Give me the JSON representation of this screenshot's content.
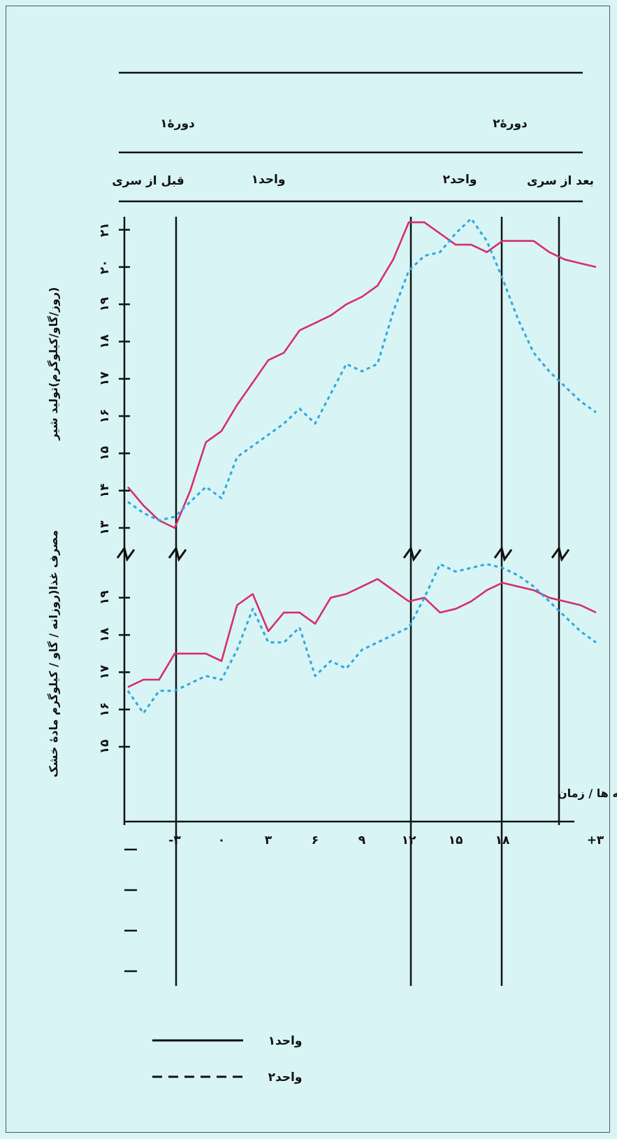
{
  "header": {
    "period1": "دورهٔ۱",
    "period2": "دورهٔ۲",
    "before": "قبل از سری",
    "unit1": "واحد۱",
    "unit2": "واحد۲",
    "after": "بعد از سری"
  },
  "colors": {
    "unit1": "#d62e6b",
    "unit2": "#29a9e0",
    "axis": "#111111",
    "background": "#d9f4f4"
  },
  "chart_data": [
    {
      "type": "line",
      "title": "",
      "ylabel": "(روز/گاو/کیلوگرم)تولید شیر",
      "ylim": [
        12.3,
        21.5
      ],
      "yticks": [
        13,
        14,
        15,
        16,
        17,
        18,
        19,
        20,
        21
      ],
      "ytick_labels": [
        "۱۳",
        "۱۴",
        "۱۵",
        "۱۶",
        "۱۷",
        "۱۸",
        "۱۹",
        "۲۰",
        "۲۱"
      ],
      "series": [
        {
          "name": "واحد۱",
          "style": "solid",
          "x": [
            -6,
            -5,
            -4,
            -3,
            -2,
            -1,
            0,
            1,
            2,
            3,
            4,
            5,
            6,
            7,
            8,
            9,
            10,
            11,
            12,
            13,
            14,
            15,
            16,
            17,
            18,
            19,
            20,
            21,
            22,
            23,
            24
          ],
          "values": [
            14.1,
            13.6,
            13.2,
            13.0,
            14.0,
            15.3,
            15.6,
            16.3,
            16.9,
            17.5,
            17.7,
            18.3,
            18.5,
            18.7,
            19.0,
            19.2,
            19.5,
            20.2,
            21.2,
            21.2,
            20.9,
            20.6,
            20.6,
            20.4,
            20.7,
            20.7,
            20.7,
            20.4,
            20.2,
            20.1,
            20.0
          ]
        },
        {
          "name": "واحد۲",
          "style": "dashed",
          "x": [
            -6,
            -5,
            -4,
            -3,
            -2,
            -1,
            0,
            1,
            2,
            3,
            4,
            5,
            6,
            7,
            8,
            9,
            10,
            11,
            12,
            13,
            14,
            15,
            16,
            17,
            18,
            19,
            20,
            21,
            22,
            23,
            24
          ],
          "values": [
            13.7,
            13.4,
            13.2,
            13.3,
            13.7,
            14.1,
            13.8,
            14.9,
            15.2,
            15.5,
            15.8,
            16.2,
            15.8,
            16.6,
            17.4,
            17.2,
            17.4,
            18.8,
            19.9,
            20.3,
            20.4,
            20.9,
            21.3,
            20.7,
            19.7,
            18.6,
            17.7,
            17.2,
            16.8,
            16.4,
            16.1
          ]
        }
      ]
    },
    {
      "type": "line",
      "title": "",
      "ylabel": "مصرف غذا(روزانه / گاو / کیلوگرم مادهٔ خشک",
      "xlabel": "هفته ها / زمان",
      "ylim": [
        14.3,
        20.6
      ],
      "yticks": [
        15,
        16,
        17,
        18,
        19
      ],
      "ytick_labels": [
        "۱۵",
        "۱۶",
        "۱۷",
        "۱۸",
        "۱۹"
      ],
      "xticks": [
        -3,
        0,
        3,
        6,
        9,
        12,
        15,
        18
      ],
      "xtick_labels": [
        "-۳",
        "۰",
        "۳",
        "۶",
        "۹",
        "۱۲",
        "۱۵",
        "۱۸"
      ],
      "x_end_label": "+۳",
      "series": [
        {
          "name": "واحد۱",
          "style": "solid",
          "x": [
            -6,
            -5,
            -4,
            -3,
            -2,
            -1,
            0,
            1,
            2,
            3,
            4,
            5,
            6,
            7,
            8,
            9,
            10,
            11,
            12,
            13,
            14,
            15,
            16,
            17,
            18,
            19,
            20,
            21,
            22,
            23,
            24
          ],
          "values": [
            16.6,
            16.8,
            16.8,
            17.5,
            17.5,
            17.5,
            17.3,
            18.8,
            19.1,
            18.1,
            18.6,
            18.6,
            18.3,
            19.0,
            19.1,
            19.3,
            19.5,
            19.2,
            18.9,
            19.0,
            18.6,
            18.7,
            18.9,
            19.2,
            19.4,
            19.3,
            19.2,
            19.0,
            18.9,
            18.8,
            18.6
          ]
        },
        {
          "name": "واحد۲",
          "style": "dashed",
          "x": [
            -6,
            -5,
            -4,
            -3,
            -2,
            -1,
            0,
            1,
            2,
            3,
            4,
            5,
            6,
            7,
            8,
            9,
            10,
            11,
            12,
            13,
            14,
            15,
            16,
            17,
            18,
            19,
            20,
            21,
            22,
            23,
            24
          ],
          "values": [
            16.5,
            15.9,
            16.5,
            16.5,
            16.7,
            16.9,
            16.8,
            17.6,
            18.7,
            17.8,
            17.8,
            18.2,
            16.9,
            17.3,
            17.1,
            17.6,
            17.8,
            18.0,
            18.2,
            19.0,
            19.9,
            19.7,
            19.8,
            19.9,
            19.8,
            19.6,
            19.3,
            18.9,
            18.5,
            18.1,
            17.8
          ]
        }
      ]
    }
  ],
  "legend": {
    "items": [
      {
        "label": "واحد۱",
        "style": "solid"
      },
      {
        "label": "واحد۲",
        "style": "dashed"
      }
    ]
  }
}
